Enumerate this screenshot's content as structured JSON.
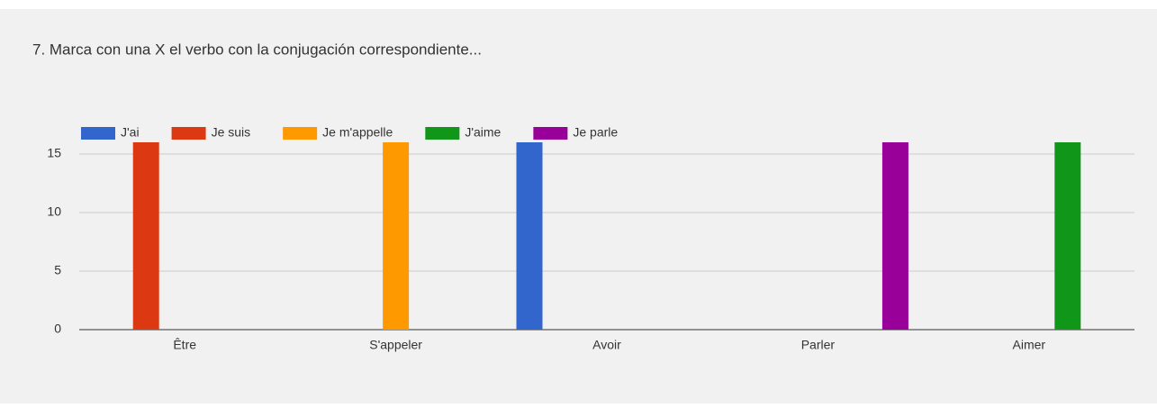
{
  "chart_data": {
    "type": "bar",
    "title": "7. Marca con una X el verbo con la conjugación correspondiente...",
    "categories": [
      "Être",
      "S'appeler",
      "Avoir",
      "Parler",
      "Aimer"
    ],
    "series": [
      {
        "name": "J'ai",
        "color": "#3366cc",
        "values": [
          0,
          0,
          16,
          0,
          0
        ]
      },
      {
        "name": "Je suis",
        "color": "#dc3912",
        "values": [
          16,
          0,
          0,
          0,
          0
        ]
      },
      {
        "name": "Je m'appelle",
        "color": "#ff9900",
        "values": [
          0,
          16,
          0,
          0,
          0
        ]
      },
      {
        "name": "J'aime",
        "color": "#109618",
        "values": [
          0,
          0,
          0,
          0,
          16
        ]
      },
      {
        "name": "Je parle",
        "color": "#990099",
        "values": [
          0,
          0,
          0,
          16,
          0
        ]
      }
    ],
    "ylim": [
      0,
      17
    ],
    "yticks": [
      0,
      5,
      10,
      15
    ],
    "grid": true,
    "legend": "top"
  }
}
